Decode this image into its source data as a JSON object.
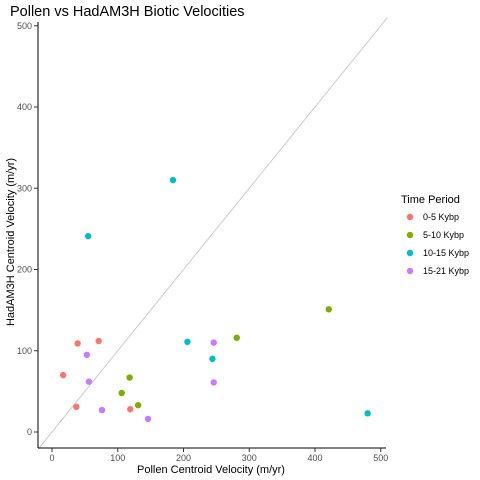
{
  "chart_data": {
    "type": "scatter",
    "title": "Pollen vs HadAM3H Biotic Velocities",
    "xlabel": "Pollen Centroid Velocity (m/yr)",
    "ylabel": "HadAM3H Centroid Velocity (m/yr)",
    "xlim": [
      -20,
      510
    ],
    "ylim": [
      -20,
      510
    ],
    "xticks": [
      0,
      100,
      200,
      300,
      400,
      500
    ],
    "yticks": [
      0,
      100,
      200,
      300,
      400,
      500
    ],
    "reference_line": "y = x",
    "grid": false,
    "legend": {
      "title": "Time Period",
      "position": "right"
    },
    "series": [
      {
        "name": "0-5 Kybp",
        "color": "#F8766D",
        "points": [
          [
            17,
            70
          ],
          [
            37,
            31
          ],
          [
            39,
            109
          ],
          [
            71,
            112
          ],
          [
            119,
            28
          ]
        ]
      },
      {
        "name": "5-10 Kybp",
        "color": "#7CAE00",
        "points": [
          [
            106,
            48
          ],
          [
            118,
            67
          ],
          [
            131,
            33
          ],
          [
            281,
            116
          ],
          [
            421,
            151
          ]
        ]
      },
      {
        "name": "10-15 Kybp",
        "color": "#00BFC4",
        "points": [
          [
            55,
            241
          ],
          [
            184,
            310
          ],
          [
            206,
            111
          ],
          [
            244,
            90
          ],
          [
            480,
            23
          ]
        ]
      },
      {
        "name": "15-21 Kybp",
        "color": "#C77CFF",
        "points": [
          [
            53,
            95
          ],
          [
            56,
            62
          ],
          [
            76,
            27
          ],
          [
            146,
            16
          ],
          [
            246,
            61
          ],
          [
            246,
            110
          ]
        ]
      }
    ]
  }
}
